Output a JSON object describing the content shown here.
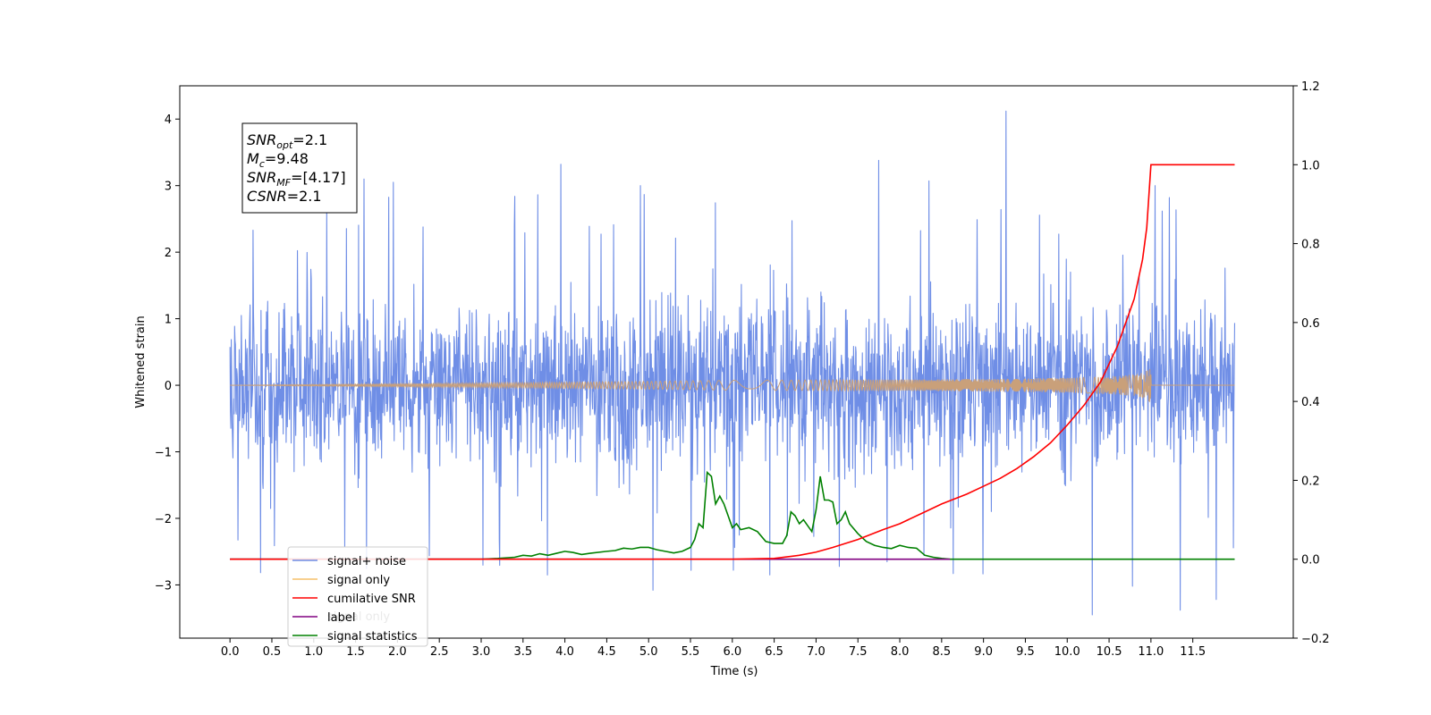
{
  "chart_data": {
    "type": "line",
    "xlabel": "Time (s)",
    "ylabel": "Whitened strain",
    "xlim": [
      -0.6,
      12.7
    ],
    "ylim": [
      -3.8,
      4.5
    ],
    "y2lim": [
      -0.2,
      1.2
    ],
    "x_ticks": [
      "0.0",
      "0.5",
      "1.0",
      "1.5",
      "2.0",
      "2.5",
      "3.0",
      "3.5",
      "4.0",
      "4.5",
      "5.0",
      "5.5",
      "6.0",
      "6.5",
      "7.0",
      "7.5",
      "8.0",
      "8.5",
      "9.0",
      "9.5",
      "10.0",
      "10.5",
      "11.0",
      "11.5"
    ],
    "y_ticks": [
      "−3",
      "−2",
      "−1",
      "0",
      "1",
      "2",
      "3",
      "4"
    ],
    "y2_ticks": [
      "−0.2",
      "0.0",
      "0.2",
      "0.4",
      "0.6",
      "0.8",
      "1.0",
      "1.2"
    ],
    "x_range": [
      0.0,
      12.0
    ],
    "colors": {
      "noise": "#6f8ee6",
      "signal": "#f5c06a",
      "signal_band": "#c9a07a",
      "snr": "#ff0000",
      "label": "#800080",
      "stats": "#008000"
    },
    "series": [
      {
        "name": "signal+ noise",
        "axis": "left",
        "noise_std": 0.62,
        "spikes": [
          [
            1.95,
            3.05
          ],
          [
            3.95,
            3.32
          ],
          [
            7.75,
            3.38
          ],
          [
            9.27,
            4.12
          ],
          [
            10.3,
            -3.45
          ],
          [
            11.35,
            -3.38
          ],
          [
            11.78,
            -3.22
          ],
          [
            5.05,
            -3.08
          ],
          [
            6.45,
            -2.85
          ],
          [
            10.78,
            -3.02
          ],
          [
            1.6,
            3.1
          ],
          [
            4.9,
            3.0
          ],
          [
            8.35,
            3.07
          ],
          [
            11.05,
            3.0
          ],
          [
            11.22,
            2.82
          ]
        ]
      },
      {
        "name": "signal only",
        "axis": "left",
        "note": "chirp amplitude grows from 0 to ~0.3 near t=11.0"
      },
      {
        "name": "cumilative SNR",
        "axis": "right",
        "x": [
          0.0,
          6.0,
          6.5,
          6.8,
          7.0,
          7.2,
          7.5,
          7.8,
          8.0,
          8.3,
          8.5,
          8.8,
          9.0,
          9.2,
          9.4,
          9.6,
          9.8,
          10.0,
          10.2,
          10.4,
          10.6,
          10.8,
          10.9,
          10.95,
          11.0,
          12.0
        ],
        "y": [
          0.0,
          0.0,
          0.002,
          0.01,
          0.018,
          0.03,
          0.05,
          0.075,
          0.09,
          0.12,
          0.14,
          0.165,
          0.185,
          0.205,
          0.23,
          0.26,
          0.295,
          0.34,
          0.39,
          0.45,
          0.54,
          0.66,
          0.76,
          0.84,
          1.0,
          1.0
        ]
      },
      {
        "name": "label",
        "axis": "right",
        "x": [
          0.0,
          8.6
        ],
        "y": [
          0.0,
          0.0
        ]
      },
      {
        "name": "signal only",
        "axis": "right",
        "hidden": true
      },
      {
        "name": "signal statistics",
        "axis": "right",
        "x": [
          0.0,
          3.0,
          3.2,
          3.4,
          3.5,
          3.6,
          3.7,
          3.8,
          3.9,
          4.0,
          4.1,
          4.2,
          4.3,
          4.5,
          4.6,
          4.7,
          4.8,
          4.9,
          5.0,
          5.1,
          5.2,
          5.3,
          5.4,
          5.5,
          5.55,
          5.6,
          5.65,
          5.7,
          5.75,
          5.8,
          5.85,
          5.9,
          5.95,
          6.0,
          6.05,
          6.1,
          6.2,
          6.3,
          6.4,
          6.5,
          6.55,
          6.6,
          6.65,
          6.7,
          6.75,
          6.8,
          6.85,
          6.9,
          6.95,
          7.0,
          7.05,
          7.1,
          7.15,
          7.2,
          7.25,
          7.3,
          7.35,
          7.4,
          7.5,
          7.6,
          7.7,
          7.8,
          7.9,
          8.0,
          8.1,
          8.2,
          8.3,
          8.4,
          8.5,
          8.6,
          12.0
        ],
        "y": [
          0.0,
          0.0,
          0.002,
          0.005,
          0.01,
          0.008,
          0.014,
          0.01,
          0.015,
          0.02,
          0.017,
          0.012,
          0.015,
          0.02,
          0.022,
          0.028,
          0.026,
          0.03,
          0.03,
          0.024,
          0.02,
          0.016,
          0.02,
          0.03,
          0.05,
          0.09,
          0.08,
          0.22,
          0.21,
          0.14,
          0.16,
          0.14,
          0.11,
          0.08,
          0.09,
          0.075,
          0.08,
          0.07,
          0.045,
          0.04,
          0.04,
          0.04,
          0.06,
          0.12,
          0.11,
          0.09,
          0.1,
          0.085,
          0.07,
          0.125,
          0.21,
          0.15,
          0.15,
          0.145,
          0.09,
          0.1,
          0.12,
          0.09,
          0.065,
          0.045,
          0.035,
          0.03,
          0.027,
          0.035,
          0.03,
          0.028,
          0.01,
          0.005,
          0.002,
          0.0,
          0.0
        ]
      }
    ],
    "legend": {
      "placement": "lower-left",
      "entries": [
        {
          "label": "signal+ noise",
          "color": "#6f8ee6"
        },
        {
          "label": "signal only",
          "color": "#f5c06a"
        },
        {
          "label": "cumilative SNR",
          "color": "#ff0000"
        },
        {
          "label": "label",
          "color": "#800080"
        },
        {
          "label": "signal statistics",
          "color": "#008000"
        }
      ],
      "hidden_entry": "signal only"
    },
    "annotation": {
      "lines": [
        {
          "sym": "SNR",
          "sub": "opt",
          "val": "=2.1"
        },
        {
          "sym": "M",
          "sub": "c",
          "val": "=9.48"
        },
        {
          "sym": "SNR",
          "sub": "MF",
          "val": "=[4.17]"
        },
        {
          "sym": "CSNR",
          "sub": "",
          "val": "=2.1"
        }
      ]
    }
  }
}
